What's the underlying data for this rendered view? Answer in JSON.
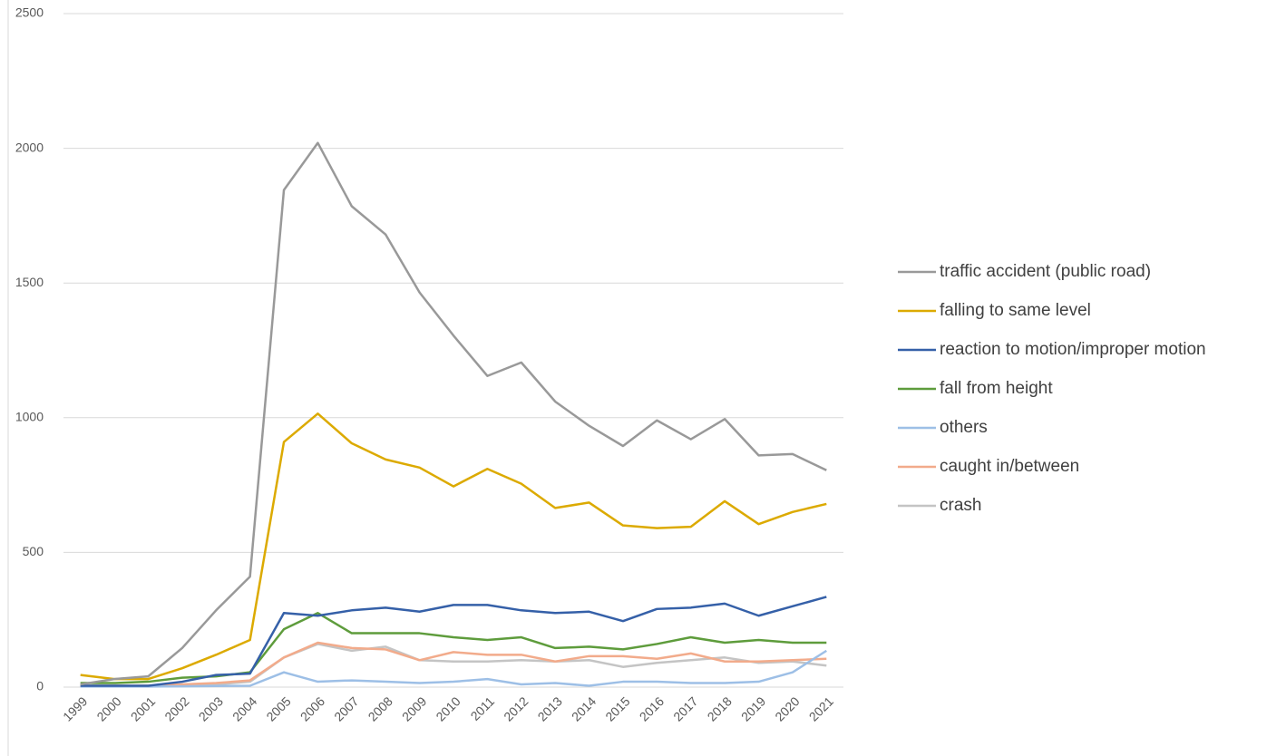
{
  "chart_data": {
    "type": "line",
    "categories": [
      "1999",
      "2000",
      "2001",
      "2002",
      "2003",
      "2004",
      "2005",
      "2006",
      "2007",
      "2008",
      "2009",
      "2010",
      "2011",
      "2012",
      "2013",
      "2014",
      "2015",
      "2016",
      "2017",
      "2018",
      "2019",
      "2020",
      "2021"
    ],
    "ylim": [
      0,
      2500
    ],
    "yticks": [
      0,
      500,
      1000,
      1500,
      2000,
      2500
    ],
    "grid": true,
    "series": [
      {
        "name": "traffic accident (public road)",
        "color": "#999999",
        "values": [
          10,
          30,
          40,
          145,
          285,
          410,
          1845,
          2020,
          1785,
          1680,
          1465,
          1305,
          1155,
          1205,
          1060,
          970,
          895,
          990,
          920,
          995,
          860,
          865,
          805
        ]
      },
      {
        "name": "falling to same level",
        "color": "#dcaa00",
        "values": [
          45,
          30,
          30,
          70,
          120,
          175,
          910,
          1015,
          905,
          845,
          815,
          745,
          810,
          755,
          665,
          685,
          600,
          590,
          595,
          690,
          605,
          650,
          680
        ]
      },
      {
        "name": "reaction to motion/improper motion",
        "color": "#3560a8",
        "values": [
          5,
          5,
          5,
          20,
          45,
          50,
          275,
          265,
          285,
          295,
          280,
          305,
          305,
          285,
          275,
          280,
          245,
          290,
          295,
          310,
          265,
          300,
          335
        ]
      },
      {
        "name": "fall from height",
        "color": "#5e9c3c",
        "values": [
          15,
          15,
          20,
          35,
          40,
          55,
          215,
          275,
          200,
          200,
          200,
          185,
          175,
          185,
          145,
          150,
          140,
          160,
          185,
          165,
          175,
          165,
          165
        ]
      },
      {
        "name": "others",
        "color": "#9dbfe6",
        "values": [
          2,
          2,
          2,
          3,
          4,
          5,
          55,
          20,
          25,
          20,
          15,
          20,
          30,
          10,
          15,
          5,
          20,
          20,
          15,
          15,
          20,
          55,
          135
        ]
      },
      {
        "name": "caught in/between",
        "color": "#f2ab8b",
        "values": [
          5,
          5,
          5,
          10,
          15,
          25,
          110,
          165,
          145,
          140,
          100,
          130,
          120,
          120,
          95,
          115,
          115,
          105,
          125,
          95,
          95,
          100,
          105
        ]
      },
      {
        "name": "crash",
        "color": "#c4c4c4",
        "values": [
          5,
          5,
          5,
          10,
          10,
          20,
          110,
          160,
          135,
          150,
          100,
          95,
          95,
          100,
          95,
          100,
          75,
          90,
          100,
          110,
          90,
          95,
          80
        ]
      }
    ]
  }
}
